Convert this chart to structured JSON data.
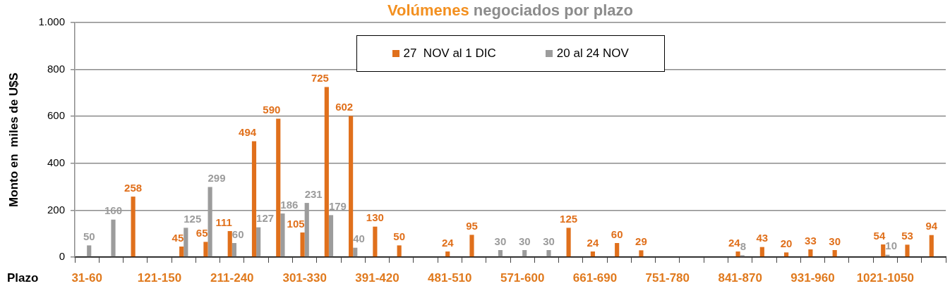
{
  "chart_data": {
    "type": "bar",
    "title": "Volúmenes negociados por plazo",
    "xlabel": "Plazo",
    "ylabel": "Monto en  miles de U$S",
    "categories": [
      "31-60",
      null,
      null,
      "121-150",
      null,
      null,
      "211-240",
      null,
      null,
      "301-330",
      null,
      null,
      "391-420",
      null,
      null,
      "481-510",
      null,
      null,
      "571-600",
      null,
      null,
      "661-690",
      null,
      null,
      "751-780",
      null,
      null,
      "841-870",
      null,
      null,
      "931-960",
      null,
      null,
      "1021-1050",
      null,
      null
    ],
    "series": [
      {
        "name": "27  NOV al 1 DIC",
        "color": "#e0701c",
        "values": [
          null,
          null,
          258,
          null,
          45,
          65,
          111,
          494,
          590,
          105,
          725,
          602,
          130,
          50,
          null,
          24,
          95,
          null,
          null,
          null,
          125,
          24,
          60,
          29,
          null,
          null,
          null,
          24,
          43,
          20,
          33,
          30,
          null,
          54,
          53,
          94
        ]
      },
      {
        "name": "20 al 24 NOV",
        "color": "#9c9c9c",
        "values": [
          50,
          160,
          null,
          null,
          125,
          299,
          60,
          127,
          186,
          231,
          179,
          40,
          null,
          null,
          null,
          null,
          null,
          30,
          30,
          30,
          null,
          null,
          null,
          null,
          null,
          null,
          null,
          8,
          null,
          null,
          null,
          null,
          null,
          10,
          null,
          null
        ]
      }
    ],
    "ylim": [
      0,
      1000
    ],
    "yticks": [
      0,
      200,
      400,
      600,
      800,
      {
        "value": 1000,
        "label": "1.000"
      }
    ],
    "grid": "y",
    "legend": "top",
    "data_labels": true
  }
}
